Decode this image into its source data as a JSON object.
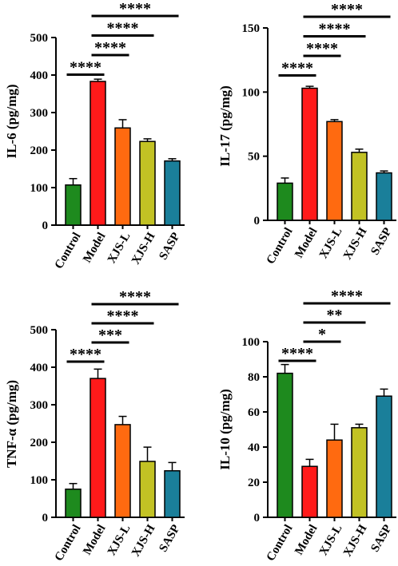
{
  "chart_data": [
    {
      "type": "bar",
      "ylabel": "IL-6 (pg/mg)",
      "categories": [
        "Control",
        "Model",
        "XJS-L",
        "XJS-H",
        "SASP"
      ],
      "values": [
        107,
        383,
        259,
        223,
        171
      ],
      "errors": [
        17,
        6,
        22,
        7,
        6
      ],
      "ylim": [
        0,
        500
      ],
      "yticks": [
        0,
        100,
        200,
        300,
        400,
        500
      ],
      "significance": [
        {
          "from": 0,
          "to": 1,
          "label": "****"
        },
        {
          "from": 1,
          "to": 2,
          "label": "****"
        },
        {
          "from": 1,
          "to": 3,
          "label": "****"
        },
        {
          "from": 1,
          "to": 4,
          "label": "****"
        }
      ]
    },
    {
      "type": "bar",
      "ylabel": "IL-17 (pg/mg)",
      "categories": [
        "Control",
        "Model",
        "XJS-L",
        "XJS-H",
        "SASP"
      ],
      "values": [
        29,
        103,
        77,
        53,
        37
      ],
      "errors": [
        4,
        1.5,
        1.5,
        2.5,
        1.5
      ],
      "ylim": [
        0,
        150
      ],
      "yticks": [
        0,
        50,
        100,
        150
      ],
      "significance": [
        {
          "from": 0,
          "to": 1,
          "label": "****"
        },
        {
          "from": 1,
          "to": 2,
          "label": "****"
        },
        {
          "from": 1,
          "to": 3,
          "label": "****"
        },
        {
          "from": 1,
          "to": 4,
          "label": "****"
        }
      ]
    },
    {
      "type": "bar",
      "ylabel": "TNF-α (pg/mg)",
      "categories": [
        "Control",
        "Model",
        "XJS-L",
        "XJS-H",
        "SASP"
      ],
      "values": [
        75,
        370,
        247,
        149,
        124
      ],
      "errors": [
        15,
        25,
        22,
        38,
        22
      ],
      "ylim": [
        0,
        500
      ],
      "yticks": [
        0,
        100,
        200,
        300,
        400,
        500
      ],
      "significance": [
        {
          "from": 0,
          "to": 1,
          "label": "****"
        },
        {
          "from": 1,
          "to": 2,
          "label": "***"
        },
        {
          "from": 1,
          "to": 3,
          "label": "****"
        },
        {
          "from": 1,
          "to": 4,
          "label": "****"
        }
      ]
    },
    {
      "type": "bar",
      "ylabel": "IL-10 (pg/mg)",
      "categories": [
        "Control",
        "Model",
        "XJS-L",
        "XJS-H",
        "SASP"
      ],
      "values": [
        82,
        29,
        44,
        51,
        69
      ],
      "errors": [
        5,
        4,
        9,
        2,
        4
      ],
      "ylim": [
        0,
        100
      ],
      "yticks": [
        0,
        20,
        40,
        60,
        80,
        100
      ],
      "significance": [
        {
          "from": 0,
          "to": 1,
          "label": "****"
        },
        {
          "from": 1,
          "to": 2,
          "label": "*"
        },
        {
          "from": 1,
          "to": 3,
          "label": "**"
        },
        {
          "from": 1,
          "to": 4,
          "label": "****"
        }
      ]
    }
  ],
  "bar_colors": [
    "#1e8a1e",
    "#ff1a1a",
    "#ff6a10",
    "#c2c224",
    "#1a7f9a"
  ]
}
